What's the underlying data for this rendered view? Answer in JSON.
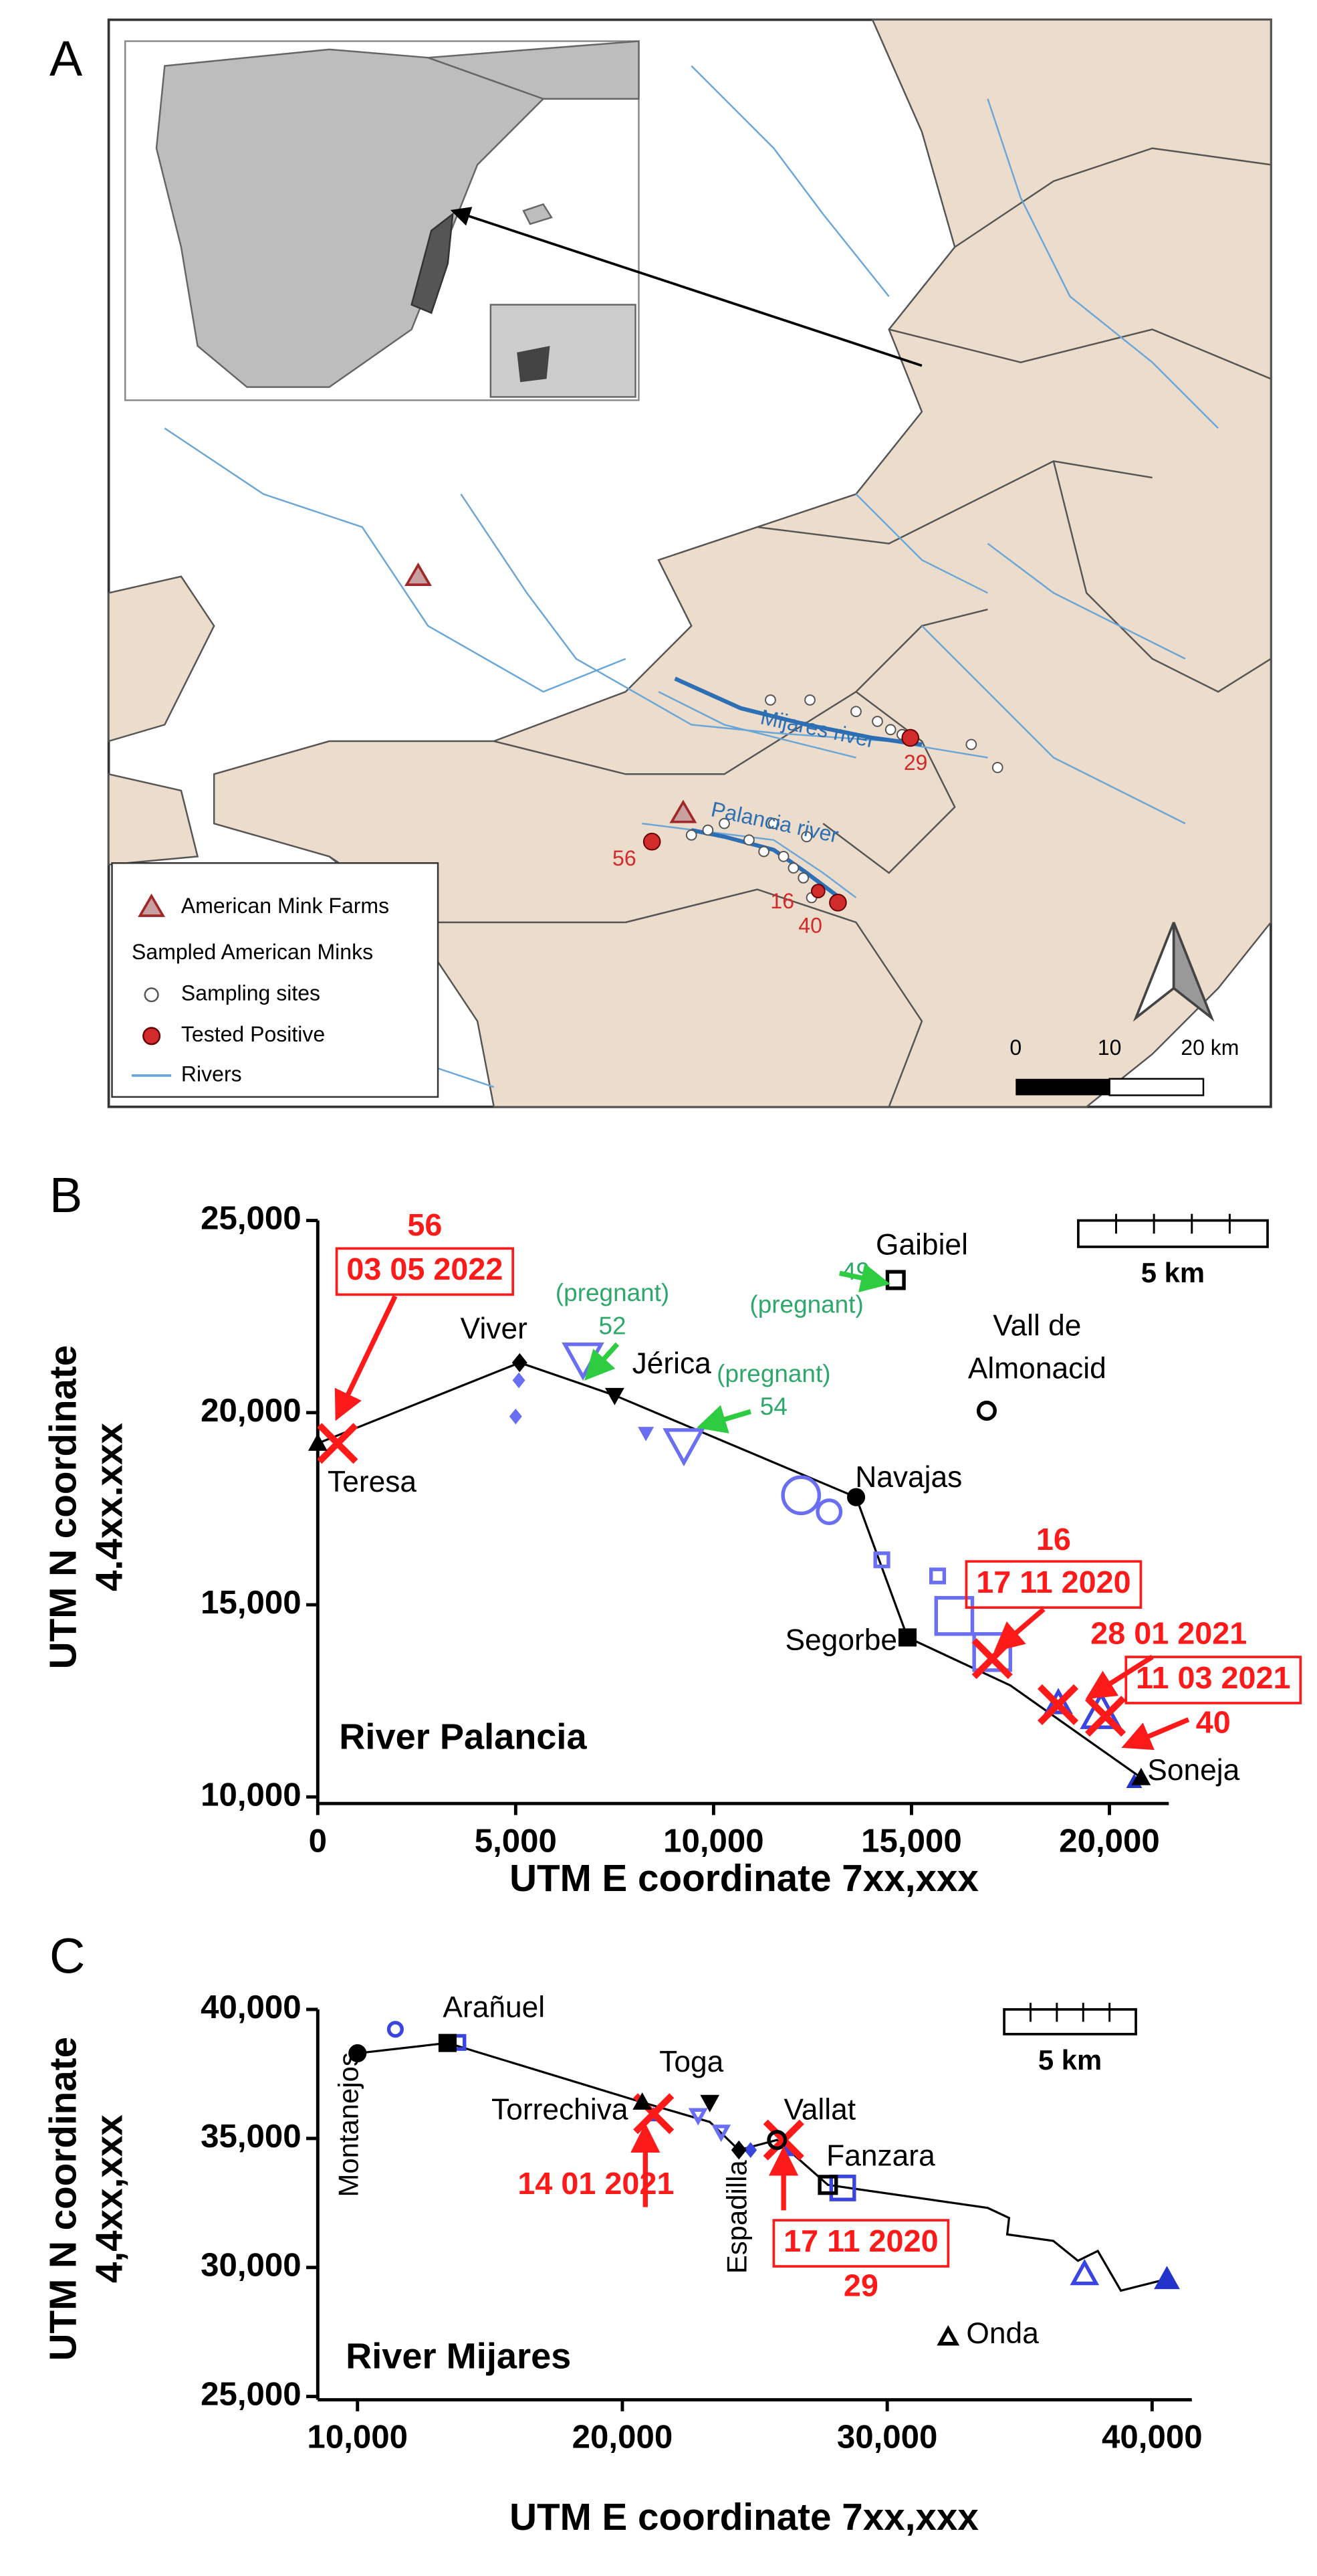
{
  "panel_labels": [
    "A",
    "B",
    "C"
  ],
  "map": {
    "legend": [
      "American Mink Farms",
      "Sampled American Minks",
      "Sampling sites",
      "Tested Positive",
      "Rivers"
    ],
    "river_labels": [
      "Mijares river",
      "Palancia river"
    ],
    "positive_labels": [
      "56",
      "16",
      "40",
      "29"
    ],
    "scale_labels": [
      "0",
      "10",
      "20 km"
    ]
  },
  "chart_data": [
    {
      "type": "scatter",
      "title": "River Palancia",
      "xlabel": "UTM E coordinate 7xx,xxx",
      "ylabel": [
        "UTM N coordinate",
        "4.4xx.xxx"
      ],
      "xlim": [
        0,
        21500
      ],
      "ylim": [
        10000,
        25000
      ],
      "xticks": [
        0,
        {
          "value": 5000,
          "label": "5,000"
        },
        {
          "value": 10000,
          "label": "10,000"
        },
        {
          "value": 15000,
          "label": "15,000"
        },
        {
          "value": 20000,
          "label": "20,000"
        }
      ],
      "yticks": [
        {
          "value": 10000,
          "label": "10,000"
        },
        {
          "value": 15000,
          "label": "15,000"
        },
        {
          "value": 20000,
          "label": "20,000"
        },
        {
          "value": 25000,
          "label": "25,000"
        }
      ],
      "scale_bar": "5 km",
      "line": {
        "color": "#000000",
        "x": [
          0,
          5100,
          7500,
          13600,
          14900,
          17500,
          20800
        ],
        "y": [
          19200,
          21300,
          20450,
          17800,
          14150,
          12900,
          10500
        ]
      },
      "sites": [
        {
          "name": "Teresa",
          "x": 0,
          "y": 19200,
          "marker": "triangle"
        },
        {
          "name": "Viver",
          "x": 5100,
          "y": 21300,
          "marker": "diamond"
        },
        {
          "name": "Jérica",
          "x": 7500,
          "y": 20450,
          "marker": "triangle-down"
        },
        {
          "name": "Navajas",
          "x": 13600,
          "y": 17800,
          "marker": "circle"
        },
        {
          "name": "Segorbe",
          "x": 14900,
          "y": 14150,
          "marker": "square"
        },
        {
          "name": "Soneja",
          "x": 20800,
          "y": 10500,
          "marker": "triangle"
        },
        {
          "name": "Gaibiel",
          "x": 14600,
          "y": 23450,
          "marker": "square-open"
        },
        {
          "name": [
            "Vall de",
            "Almonacid"
          ],
          "x": 16900,
          "y": 20050,
          "marker": "circle-open"
        }
      ],
      "series": [
        {
          "marker": "diamond",
          "size": "small",
          "color": "#6a6ef0",
          "x": [
            5000,
            5080
          ],
          "y": [
            19900,
            20840
          ]
        },
        {
          "marker": "triangle-down-open",
          "size": "large",
          "color": "#6a6ef0",
          "x": [
            6700,
            9250
          ],
          "y": [
            21400,
            19170
          ]
        },
        {
          "marker": "triangle-down",
          "size": "small",
          "color": "#6a6ef0",
          "x": [
            8290
          ],
          "y": [
            19470
          ]
        },
        {
          "marker": "circle-open",
          "size": "large",
          "color": "#6a6ef0",
          "x": [
            12210
          ],
          "y": [
            17850
          ]
        },
        {
          "marker": "circle-open",
          "size": "medium",
          "color": "#6a6ef0",
          "x": [
            12920
          ],
          "y": [
            17420
          ]
        },
        {
          "marker": "square-open",
          "size": "small",
          "color": "#6a6ef0",
          "x": [
            14250,
            15660
          ],
          "y": [
            16170,
            15750
          ]
        },
        {
          "marker": "square-open",
          "size": "large",
          "color": "#6a6ef0",
          "x": [
            16080,
            17040
          ],
          "y": [
            14710,
            13770
          ]
        },
        {
          "marker": "triangle-open",
          "size": "medium",
          "color": "#3a44e0",
          "x": [
            18710
          ],
          "y": [
            12440
          ]
        },
        {
          "marker": "triangle-open",
          "size": "large",
          "color": "#3a44e0",
          "x": [
            19790
          ],
          "y": [
            12190
          ]
        },
        {
          "marker": "triangle",
          "size": "small",
          "color": "#2233cc",
          "x": [
            20625
          ],
          "y": [
            10390
          ]
        },
        {
          "marker": "x",
          "size": "large",
          "color": "#ff1a1a",
          "x": [
            500,
            17040,
            18700,
            19900
          ],
          "y": [
            19200,
            13600,
            12400,
            12100
          ]
        }
      ],
      "annotations": [
        {
          "color": "#ff1a1a",
          "lines": [
            {
              "text": "56"
            },
            {
              "text": "03 05 2022",
              "boxed": true
            }
          ]
        },
        {
          "color": "#2ea86a",
          "lines": [
            {
              "text": "(pregnant)"
            },
            {
              "text": "52"
            }
          ]
        },
        {
          "color": "#2ea86a",
          "lines": [
            {
              "text": "(pregnant)"
            },
            {
              "text": "54"
            }
          ]
        },
        {
          "color": "#2ea86a",
          "lines": [
            {
              "text": "49"
            },
            {
              "text": "(pregnant)"
            }
          ]
        },
        {
          "color": "#ff1a1a",
          "lines": [
            {
              "text": "16"
            },
            {
              "text": "17 11 2020",
              "boxed": true
            }
          ]
        },
        {
          "color": "#ff1a1a",
          "lines": [
            {
              "text": "28 01 2021"
            }
          ]
        },
        {
          "color": "#ff1a1a",
          "lines": [
            {
              "text": "11 03 2021",
              "boxed": true
            },
            {
              "text": "40"
            }
          ]
        }
      ]
    },
    {
      "type": "scatter",
      "title": "River Mijares",
      "xlabel": "UTM E coordinate 7xx,xxx",
      "ylabel": [
        "UTM N coordinate",
        "4,4xx,xxx"
      ],
      "xlim": [
        8500,
        41500
      ],
      "ylim": [
        25000,
        40000
      ],
      "xticks": [
        {
          "value": 10000,
          "label": "10,000"
        },
        {
          "value": 20000,
          "label": "20,000"
        },
        {
          "value": 30000,
          "label": "30,000"
        },
        {
          "value": 40000,
          "label": "40,000"
        }
      ],
      "yticks": [
        {
          "value": 25000,
          "label": "25,000"
        },
        {
          "value": 30000,
          "label": "30,000"
        },
        {
          "value": 35000,
          "label": "35,000"
        },
        {
          "value": 40000,
          "label": "40,000"
        }
      ],
      "scale_bar": "5 km",
      "line": {
        "color": "#000000",
        "x": [
          10000,
          13400,
          20750,
          23300,
          24400,
          25840,
          27760,
          33790,
          34600,
          34530,
          36270,
          37200,
          37950,
          38820,
          40560
        ],
        "y": [
          38300,
          38700,
          36400,
          35640,
          34550,
          34940,
          33200,
          32310,
          31920,
          31280,
          31030,
          30260,
          30640,
          29100,
          29550
        ]
      },
      "sites": [
        {
          "name": "Montanejos",
          "x": 10000,
          "y": 38300,
          "marker": "circle"
        },
        {
          "name": "Arañuel",
          "x": 13400,
          "y": 38700,
          "marker": "square"
        },
        {
          "name": "Torrechiva",
          "x": 20750,
          "y": 36400,
          "marker": "triangle"
        },
        {
          "name": "Toga",
          "x": 23300,
          "y": 36400,
          "marker": "triangle-down"
        },
        {
          "name": "Espadilla",
          "x": 24400,
          "y": 34550,
          "marker": "diamond"
        },
        {
          "name": "Vallat",
          "x": 25840,
          "y": 34940,
          "marker": "circle-open"
        },
        {
          "name": "Fanzara",
          "x": 27760,
          "y": 33200,
          "marker": "square-open"
        },
        {
          "name": "Onda",
          "x": 32300,
          "y": 27300,
          "marker": "triangle-open"
        }
      ],
      "series": [
        {
          "marker": "circle-open",
          "size": "small",
          "color": "#3a44e0",
          "x": [
            11430
          ],
          "y": [
            39230
          ]
        },
        {
          "marker": "square-open",
          "size": "small",
          "color": "#3a44e0",
          "x": [
            13790
          ],
          "y": [
            38720
          ]
        },
        {
          "marker": "triangle",
          "size": "small",
          "color": "#3a44e0",
          "x": [
            21180
          ],
          "y": [
            35900
          ]
        },
        {
          "marker": "triangle-down-open",
          "size": "small",
          "color": "#6a6ef0",
          "x": [
            22860,
            23730
          ],
          "y": [
            35900,
            35260
          ]
        },
        {
          "marker": "diamond",
          "size": "small",
          "color": "#3a44e0",
          "x": [
            24840
          ],
          "y": [
            34550
          ]
        },
        {
          "marker": "triangle",
          "size": "small",
          "color": "#3a44e0",
          "x": [
            26200
          ],
          "y": [
            34550
          ]
        },
        {
          "marker": "square-open",
          "size": "medium",
          "color": "#3a44e0",
          "x": [
            28320
          ],
          "y": [
            33080
          ]
        },
        {
          "marker": "triangle-open",
          "size": "medium",
          "color": "#3a44e0",
          "x": [
            37450
          ],
          "y": [
            29740
          ]
        },
        {
          "marker": "triangle",
          "size": "medium",
          "color": "#2233cc",
          "x": [
            40560
          ],
          "y": [
            29550
          ]
        },
        {
          "marker": "x",
          "size": "large",
          "color": "#ff1a1a",
          "x": [
            21180,
            26090
          ],
          "y": [
            35960,
            34940
          ]
        }
      ],
      "annotations": [
        {
          "color": "#ff1a1a",
          "lines": [
            {
              "text": "14 01 2021"
            }
          ]
        },
        {
          "color": "#ff1a1a",
          "lines": [
            {
              "text": "17 11 2020",
              "boxed": true
            },
            {
              "text": "29"
            }
          ]
        }
      ]
    }
  ]
}
